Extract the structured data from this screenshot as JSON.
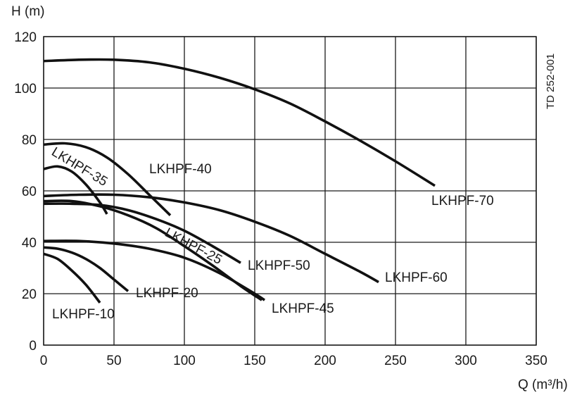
{
  "chart_data": {
    "type": "line",
    "xlabel": "Q (m³/h)",
    "ylabel": "H (m)",
    "xlim": [
      0,
      350
    ],
    "ylim": [
      0,
      120
    ],
    "x_ticks": [
      "0",
      "50",
      "100",
      "150",
      "200",
      "250",
      "300",
      "350"
    ],
    "y_ticks": [
      "0",
      "20",
      "40",
      "60",
      "80",
      "100",
      "120"
    ],
    "grid": true,
    "doc_code": "TD 252-001",
    "series": [
      {
        "name": "LKHPF-10",
        "x": [
          0,
          10,
          20,
          30,
          40
        ],
        "y": [
          35.5,
          33.5,
          29,
          23.5,
          16.5
        ]
      },
      {
        "name": "LKHPF-20",
        "x": [
          0,
          10,
          20,
          30,
          40,
          50,
          60
        ],
        "y": [
          38,
          37.5,
          36,
          33.5,
          30,
          25.5,
          21
        ]
      },
      {
        "name": "LKHPF-25",
        "x": [
          0,
          20,
          40,
          60,
          80,
          100,
          120,
          140,
          155
        ],
        "y": [
          56,
          56,
          54,
          50.5,
          45.5,
          38.5,
          31,
          23,
          17.5
        ]
      },
      {
        "name": "LKHPF-35",
        "x": [
          0,
          10,
          20,
          30,
          40,
          45
        ],
        "y": [
          68.5,
          69.5,
          67.5,
          62.5,
          55.5,
          51
        ]
      },
      {
        "name": "LKHPF-40",
        "x": [
          0,
          15,
          30,
          45,
          60,
          75,
          90
        ],
        "y": [
          78,
          78.5,
          77,
          73,
          66.5,
          58.5,
          50.5
        ]
      },
      {
        "name": "LKHPF-45",
        "x": [
          0,
          25,
          50,
          75,
          100,
          125,
          150,
          157
        ],
        "y": [
          40.5,
          40.5,
          39.5,
          37.5,
          34,
          28,
          20,
          17.5
        ]
      },
      {
        "name": "LKHPF-50",
        "x": [
          0,
          20,
          40,
          60,
          80,
          100,
          120,
          140
        ],
        "y": [
          55,
          55,
          54.5,
          52.5,
          49,
          44.5,
          38.5,
          32
        ]
      },
      {
        "name": "LKHPF-60",
        "x": [
          0,
          25,
          50,
          75,
          100,
          125,
          150,
          175,
          200,
          225,
          238
        ],
        "y": [
          58,
          58.5,
          58.5,
          57.5,
          55.5,
          52.5,
          48,
          42.5,
          35.5,
          28.5,
          24.5
        ]
      },
      {
        "name": "LKHPF-70",
        "x": [
          0,
          25,
          50,
          75,
          100,
          125,
          150,
          175,
          200,
          225,
          250,
          278
        ],
        "y": [
          110.5,
          111,
          111,
          110,
          107.5,
          104,
          99.5,
          94,
          87,
          79.5,
          71.5,
          62
        ]
      }
    ]
  }
}
